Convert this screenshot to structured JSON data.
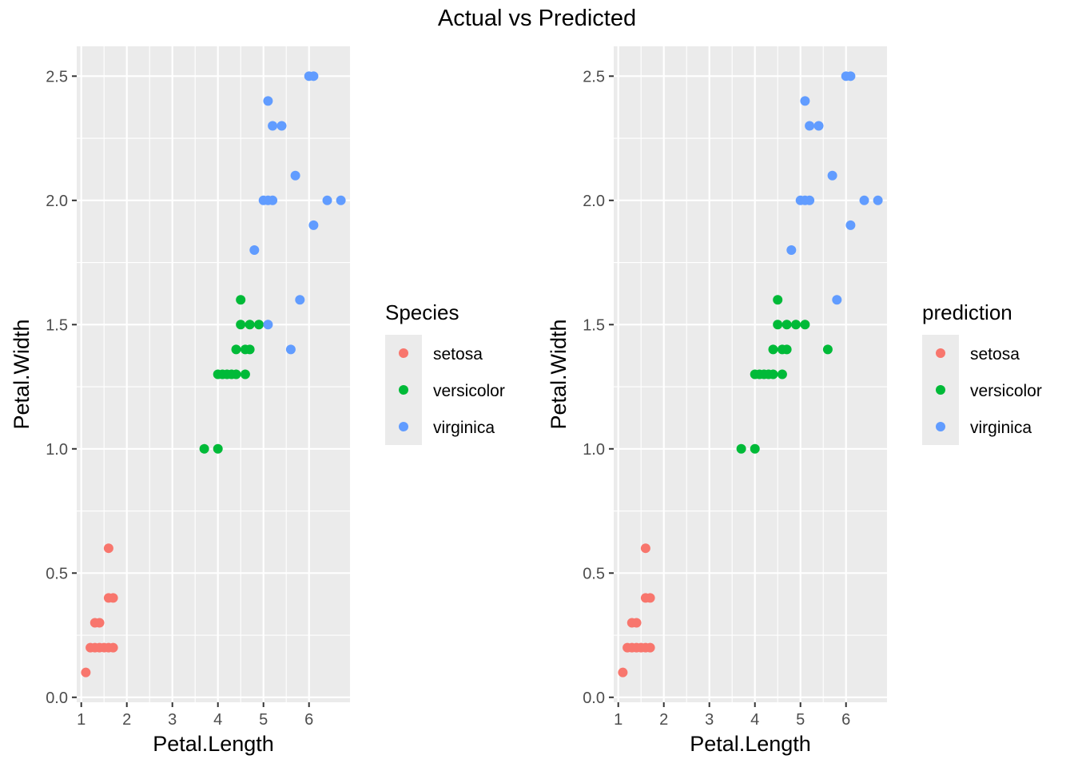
{
  "title": "Actual vs Predicted",
  "colors": {
    "panel_background": "#ebebeb",
    "grid": "#ffffff",
    "setosa": "#F8766D",
    "versicolor": "#00BA38",
    "virginica": "#619CFF"
  },
  "chart_data": [
    {
      "type": "scatter",
      "xlabel": "Petal.Length",
      "ylabel": "Petal.Width",
      "xlim": [
        0.9,
        6.9
      ],
      "ylim": [
        -0.02,
        2.62
      ],
      "x_ticks": [
        1,
        2,
        3,
        4,
        5,
        6
      ],
      "y_ticks": [
        "0.0",
        "0.5",
        "1.0",
        "1.5",
        "2.0",
        "2.5"
      ],
      "grid": true,
      "legend": {
        "title": "Species",
        "placement": "right",
        "entries": [
          "setosa",
          "versicolor",
          "virginica"
        ]
      },
      "series": [
        {
          "name": "setosa",
          "color": "#F8766D",
          "points": [
            [
              1.1,
              0.1
            ],
            [
              1.2,
              0.2
            ],
            [
              1.3,
              0.2
            ],
            [
              1.4,
              0.2
            ],
            [
              1.5,
              0.2
            ],
            [
              1.6,
              0.2
            ],
            [
              1.7,
              0.2
            ],
            [
              1.3,
              0.3
            ],
            [
              1.4,
              0.3
            ],
            [
              1.6,
              0.4
            ],
            [
              1.7,
              0.4
            ],
            [
              1.6,
              0.6
            ]
          ]
        },
        {
          "name": "versicolor",
          "color": "#00BA38",
          "points": [
            [
              3.7,
              1.0
            ],
            [
              4.0,
              1.0
            ],
            [
              4.0,
              1.3
            ],
            [
              4.1,
              1.3
            ],
            [
              4.2,
              1.3
            ],
            [
              4.3,
              1.3
            ],
            [
              4.4,
              1.3
            ],
            [
              4.6,
              1.3
            ],
            [
              4.4,
              1.4
            ],
            [
              4.6,
              1.4
            ],
            [
              4.7,
              1.4
            ],
            [
              4.5,
              1.5
            ],
            [
              4.7,
              1.5
            ],
            [
              4.9,
              1.5
            ],
            [
              4.5,
              1.6
            ]
          ]
        },
        {
          "name": "virginica",
          "color": "#619CFF",
          "points": [
            [
              5.6,
              1.4
            ],
            [
              5.1,
              1.5
            ],
            [
              5.8,
              1.6
            ],
            [
              4.8,
              1.8
            ],
            [
              6.1,
              1.9
            ],
            [
              5.0,
              2.0
            ],
            [
              5.1,
              2.0
            ],
            [
              5.2,
              2.0
            ],
            [
              6.4,
              2.0
            ],
            [
              6.7,
              2.0
            ],
            [
              5.7,
              2.1
            ],
            [
              5.2,
              2.3
            ],
            [
              5.4,
              2.3
            ],
            [
              5.1,
              2.4
            ],
            [
              6.0,
              2.5
            ],
            [
              6.1,
              2.5
            ]
          ]
        }
      ]
    },
    {
      "type": "scatter",
      "xlabel": "Petal.Length",
      "ylabel": "Petal.Width",
      "xlim": [
        0.9,
        6.9
      ],
      "ylim": [
        -0.02,
        2.62
      ],
      "x_ticks": [
        1,
        2,
        3,
        4,
        5,
        6
      ],
      "y_ticks": [
        "0.0",
        "0.5",
        "1.0",
        "1.5",
        "2.0",
        "2.5"
      ],
      "grid": true,
      "legend": {
        "title": "prediction",
        "placement": "right",
        "entries": [
          "setosa",
          "versicolor",
          "virginica"
        ]
      },
      "series": [
        {
          "name": "setosa",
          "color": "#F8766D",
          "points": [
            [
              1.1,
              0.1
            ],
            [
              1.2,
              0.2
            ],
            [
              1.3,
              0.2
            ],
            [
              1.4,
              0.2
            ],
            [
              1.5,
              0.2
            ],
            [
              1.6,
              0.2
            ],
            [
              1.7,
              0.2
            ],
            [
              1.3,
              0.3
            ],
            [
              1.4,
              0.3
            ],
            [
              1.6,
              0.4
            ],
            [
              1.7,
              0.4
            ],
            [
              1.6,
              0.6
            ]
          ]
        },
        {
          "name": "versicolor",
          "color": "#00BA38",
          "points": [
            [
              3.7,
              1.0
            ],
            [
              4.0,
              1.0
            ],
            [
              4.0,
              1.3
            ],
            [
              4.1,
              1.3
            ],
            [
              4.2,
              1.3
            ],
            [
              4.3,
              1.3
            ],
            [
              4.4,
              1.3
            ],
            [
              4.6,
              1.3
            ],
            [
              4.4,
              1.4
            ],
            [
              4.6,
              1.4
            ],
            [
              4.7,
              1.4
            ],
            [
              5.6,
              1.4
            ],
            [
              4.5,
              1.5
            ],
            [
              4.7,
              1.5
            ],
            [
              4.9,
              1.5
            ],
            [
              5.1,
              1.5
            ],
            [
              4.5,
              1.6
            ]
          ]
        },
        {
          "name": "virginica",
          "color": "#619CFF",
          "points": [
            [
              5.8,
              1.6
            ],
            [
              4.8,
              1.8
            ],
            [
              6.1,
              1.9
            ],
            [
              5.0,
              2.0
            ],
            [
              5.1,
              2.0
            ],
            [
              5.2,
              2.0
            ],
            [
              6.4,
              2.0
            ],
            [
              6.7,
              2.0
            ],
            [
              5.7,
              2.1
            ],
            [
              5.2,
              2.3
            ],
            [
              5.4,
              2.3
            ],
            [
              5.1,
              2.4
            ],
            [
              6.0,
              2.5
            ],
            [
              6.1,
              2.5
            ]
          ]
        }
      ]
    }
  ]
}
